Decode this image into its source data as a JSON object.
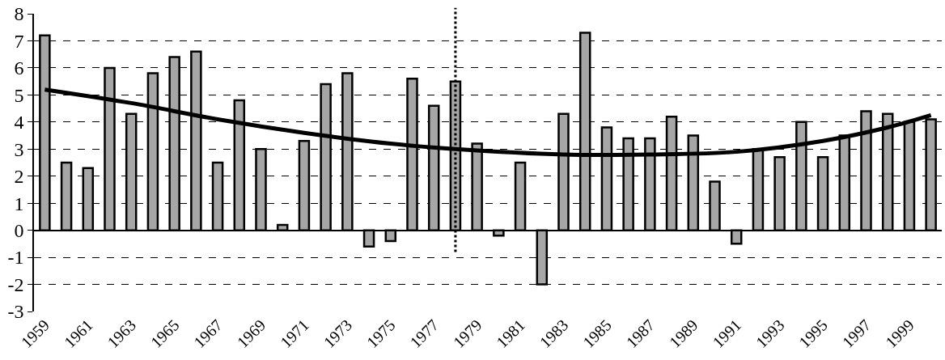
{
  "chart_data": {
    "type": "bar",
    "x": [
      1959,
      1960,
      1961,
      1962,
      1963,
      1964,
      1965,
      1966,
      1967,
      1968,
      1969,
      1970,
      1971,
      1972,
      1973,
      1974,
      1975,
      1976,
      1977,
      1978,
      1979,
      1980,
      1981,
      1982,
      1983,
      1984,
      1985,
      1986,
      1987,
      1988,
      1989,
      1990,
      1991,
      1992,
      1993,
      1994,
      1995,
      1996,
      1997,
      1998,
      1999,
      2000
    ],
    "series": [
      {
        "color": "#a6a6a6",
        "values": [
          7.2,
          2.5,
          2.3,
          6.0,
          4.3,
          5.8,
          6.4,
          6.6,
          2.5,
          4.8,
          3.0,
          0.2,
          3.3,
          5.4,
          5.8,
          -0.6,
          -0.4,
          5.6,
          4.6,
          5.5,
          3.2,
          -0.2,
          2.5,
          -2.0,
          4.3,
          7.3,
          3.8,
          3.4,
          3.4,
          4.2,
          3.5,
          1.8,
          -0.5,
          3.0,
          2.7,
          4.0,
          2.7,
          3.5,
          4.4,
          4.3,
          4.0,
          4.1
        ]
      },
      {
        "type": "line",
        "color": "#000000",
        "line_style": "solid",
        "marker": "none",
        "x": [
          1959,
          1963,
          1967,
          1971,
          1975,
          1978,
          1983,
          1987,
          1991,
          1995,
          1998,
          2000
        ],
        "values": [
          5.2,
          4.7,
          4.1,
          3.6,
          3.2,
          3.0,
          2.8,
          2.8,
          2.9,
          3.3,
          3.8,
          4.25
        ]
      }
    ],
    "xlim": [
      1958.5,
      2000.5
    ],
    "xticks": [
      1959,
      1961,
      1963,
      1965,
      1967,
      1969,
      1971,
      1973,
      1975,
      1977,
      1979,
      1981,
      1983,
      1985,
      1987,
      1989,
      1991,
      1993,
      1995,
      1997,
      1999
    ],
    "ylim": [
      -3,
      8
    ],
    "yticks": [
      -3,
      -2,
      -1,
      0,
      1,
      2,
      3,
      4,
      5,
      6,
      7,
      8
    ],
    "ref_lines": [
      {
        "axis": "x",
        "value": 1978,
        "color": "#000000",
        "line_style": "dotted"
      }
    ],
    "grid": "y"
  }
}
